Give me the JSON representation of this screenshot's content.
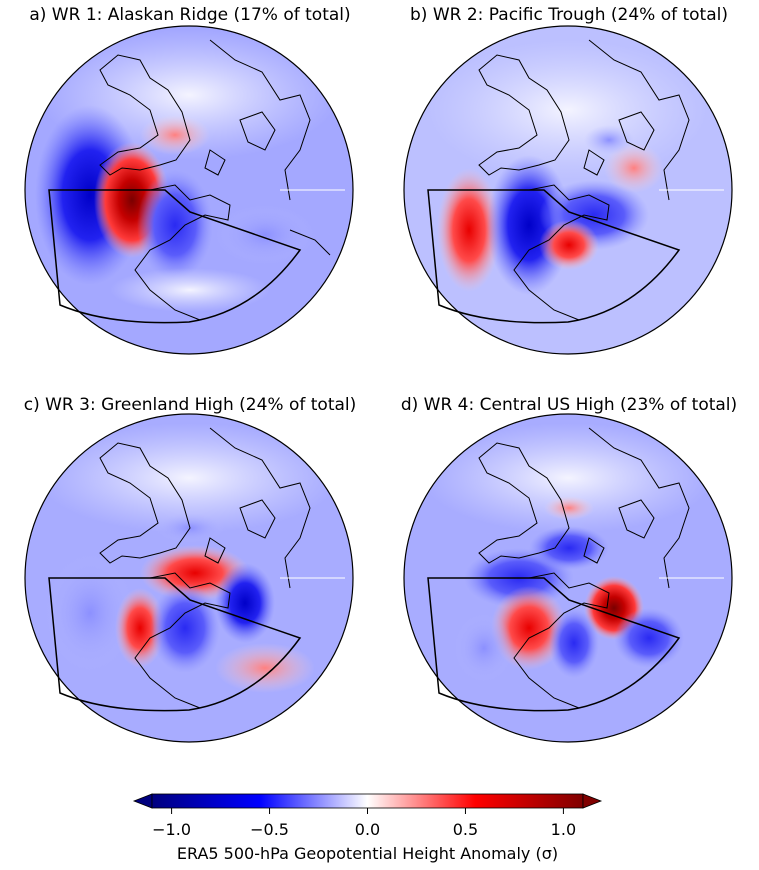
{
  "panels": [
    {
      "title": "a) WR 1: Alaskan Ridge (17% of total)"
    },
    {
      "title": "b) WR 2: Pacific Trough (24% of total)"
    },
    {
      "title": "c) WR 3: Greenland High (24% of total)"
    },
    {
      "title": "d) WR 4: Central US High (23% of total)"
    }
  ],
  "colorbar": {
    "label": "ERA5 500-hPa Geopotential Height Anomaly (σ)",
    "ticks": [
      "−1.0",
      "−0.5",
      "0.0",
      "0.5",
      "1.0"
    ],
    "tick_values": [
      -1.0,
      -0.5,
      0.0,
      0.5,
      1.0
    ],
    "range": [
      -1.1,
      1.1
    ],
    "colors": {
      "negative": "#00007f",
      "mid_negative": "#0000ff",
      "zero": "#ffffff",
      "mid_positive": "#ff0000",
      "positive": "#800000"
    }
  }
}
